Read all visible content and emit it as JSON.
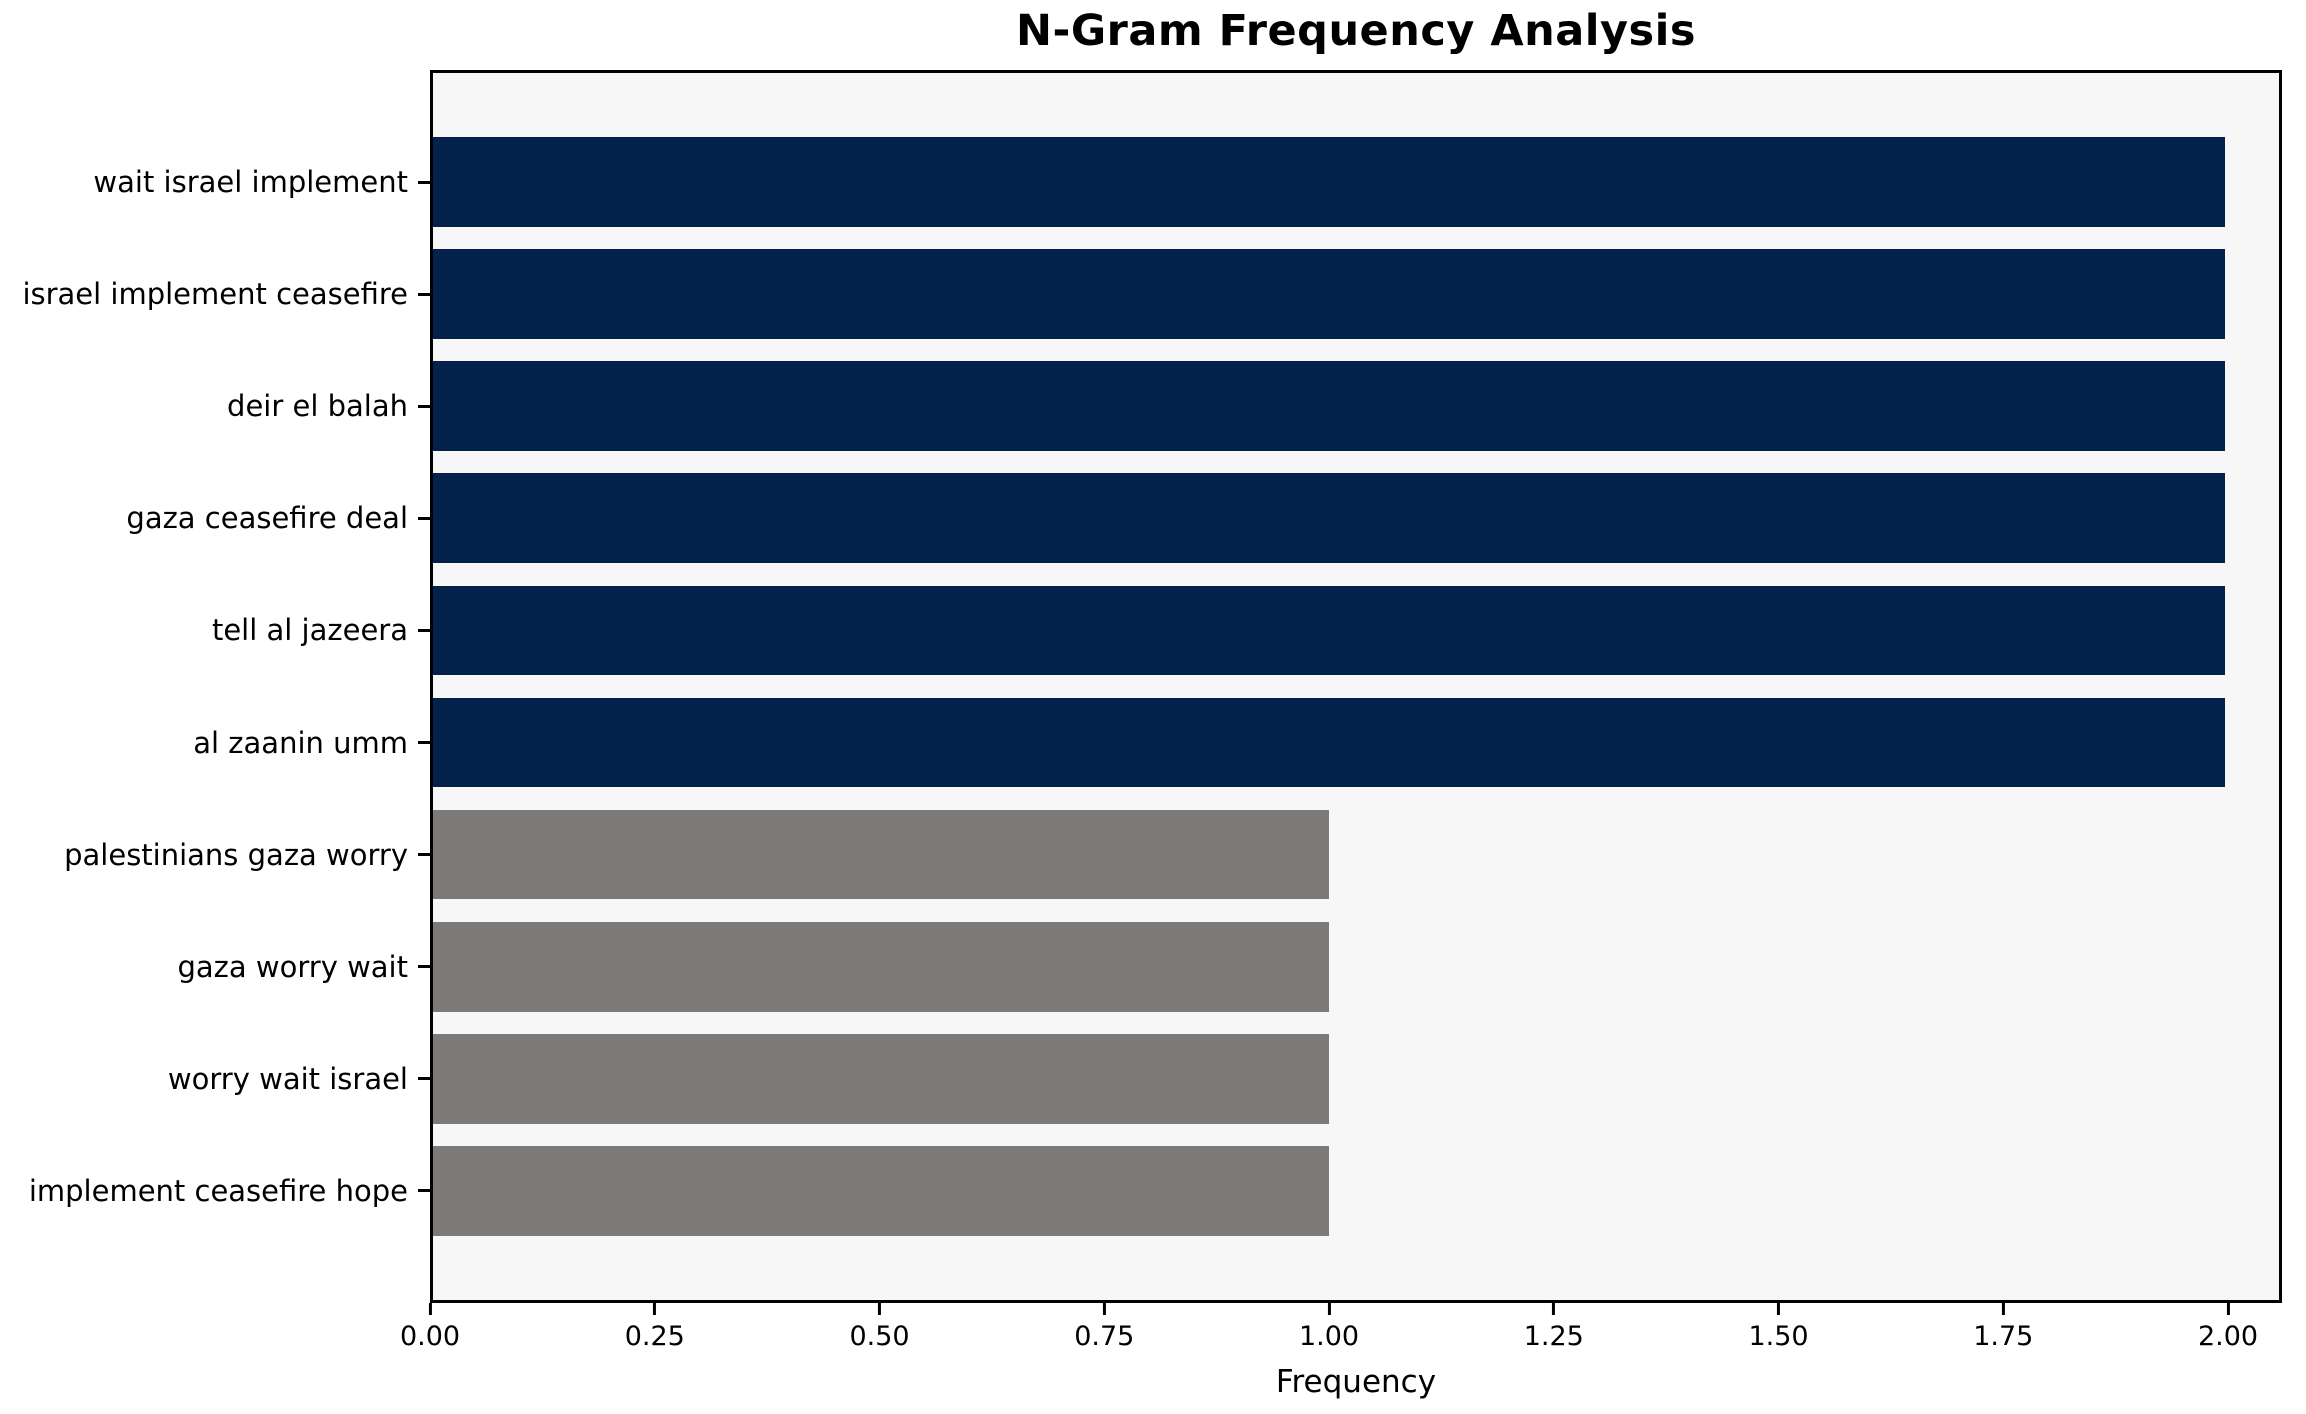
{
  "title": "N-Gram Frequency Analysis",
  "chart_data": {
    "type": "bar",
    "orientation": "horizontal",
    "title": "N-Gram Frequency Analysis",
    "xlabel": "Frequency",
    "ylabel": "",
    "categories": [
      "wait israel implement",
      "israel implement ceasefire",
      "deir el balah",
      "gaza ceasefire deal",
      "tell al jazeera",
      "al zaanin umm",
      "palestinians gaza worry",
      "gaza worry wait",
      "worry wait israel",
      "implement ceasefire hope"
    ],
    "values": [
      2,
      2,
      2,
      2,
      2,
      2,
      1,
      1,
      1,
      1
    ],
    "bar_colors": [
      "#02224c",
      "#02224c",
      "#02224c",
      "#02224c",
      "#02224c",
      "#02224c",
      "#7b7a77",
      "#7b7a77",
      "#7b7a77",
      "#7b7a77"
    ],
    "xlim": [
      0,
      2.06
    ],
    "xticks": [
      0,
      0.25,
      0.5,
      0.75,
      1.0,
      1.25,
      1.5,
      1.75,
      2.0
    ],
    "xtick_labels": [
      "0.00",
      "0.25",
      "0.50",
      "0.75",
      "1.00",
      "1.25",
      "1.50",
      "1.75",
      "2.00"
    ],
    "grid": false,
    "legend_position": "none",
    "colors": {
      "high_frequency_bar": "#02224c",
      "low_frequency_bar": "#7b7a77",
      "plot_background": "#f7f7f7",
      "figure_background": "#ffffff",
      "spine": "#000000",
      "text": "#000000"
    }
  }
}
